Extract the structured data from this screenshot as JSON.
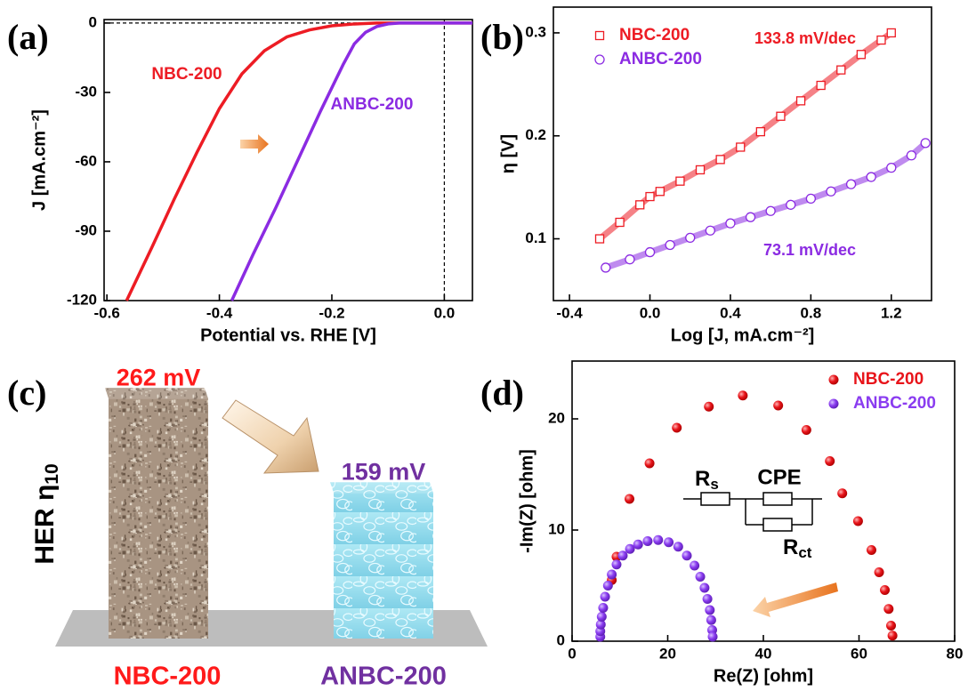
{
  "chart_data": [
    {
      "type": "line",
      "panel_label": "(a)",
      "x_label": "Potential vs. RHE [V]",
      "y_label": "J [mA.cm⁻²]",
      "xlim": [
        -0.605,
        0.05
      ],
      "ylim": [
        -120,
        1.5
      ],
      "xticks": [
        -0.6,
        -0.4,
        -0.2,
        {
          "value": 0,
          "label": "0.0"
        }
      ],
      "yticks": [
        -120,
        -90,
        -60,
        -30,
        0
      ],
      "reference_lines": {
        "x": 0,
        "y": 0
      },
      "series": [
        {
          "name": "NBC-200",
          "color": "#ed1c24",
          "x": [
            -0.565,
            -0.52,
            -0.48,
            -0.44,
            -0.4,
            -0.36,
            -0.32,
            -0.28,
            -0.24,
            -0.2,
            -0.16,
            -0.12,
            0.05
          ],
          "values": [
            -120,
            -97,
            -76,
            -56,
            -37,
            -22,
            -12,
            -6,
            -3,
            -1.2,
            -0.4,
            0,
            0
          ]
        },
        {
          "name": "ANBC-200",
          "color": "#8b2be2",
          "x": [
            -0.378,
            -0.34,
            -0.3,
            -0.26,
            -0.22,
            -0.18,
            -0.16,
            -0.14,
            -0.12,
            -0.1,
            -0.08,
            0.05
          ],
          "values": [
            -120,
            -100,
            -80,
            -59,
            -38,
            -18,
            -9,
            -4,
            -1.5,
            -0.4,
            0,
            0
          ]
        }
      ]
    },
    {
      "type": "scatter",
      "panel_label": "(b)",
      "x_label": "Log [J, mA.cm⁻²]",
      "y_label": "η [V]",
      "xlim": [
        -0.48,
        1.4
      ],
      "ylim": [
        0.04,
        0.325
      ],
      "xticks": [
        -0.4,
        {
          "value": 0,
          "label": "0.0"
        },
        0.4,
        0.8,
        1.2
      ],
      "yticks": [
        0.1,
        0.2,
        0.3
      ],
      "legend": "upper left",
      "series": [
        {
          "name": "NBC-200",
          "color": "#ed1c24",
          "marker": "square",
          "slope_label": "133.8 mV/dec",
          "x": [
            -0.25,
            -0.15,
            -0.05,
            0.0,
            0.05,
            0.15,
            0.25,
            0.35,
            0.45,
            0.55,
            0.65,
            0.75,
            0.85,
            0.95,
            1.05,
            1.15,
            1.2
          ],
          "values": [
            0.1,
            0.116,
            0.133,
            0.141,
            0.146,
            0.156,
            0.167,
            0.177,
            0.189,
            0.204,
            0.219,
            0.234,
            0.249,
            0.264,
            0.279,
            0.293,
            0.3
          ]
        },
        {
          "name": "ANBC-200",
          "color": "#8b2be2",
          "marker": "circle",
          "slope_label": "73.1 mV/dec",
          "x": [
            -0.22,
            -0.1,
            0.0,
            0.1,
            0.2,
            0.3,
            0.4,
            0.5,
            0.6,
            0.7,
            0.8,
            0.9,
            1.0,
            1.1,
            1.2,
            1.3,
            1.37
          ],
          "values": [
            0.072,
            0.08,
            0.087,
            0.094,
            0.101,
            0.108,
            0.115,
            0.121,
            0.127,
            0.133,
            0.139,
            0.146,
            0.153,
            0.16,
            0.169,
            0.181,
            0.193
          ]
        }
      ]
    },
    {
      "type": "bar",
      "panel_label": "(c)",
      "y_label": "HER η",
      "y_label_sub": "10",
      "categories": [
        "NBC-200",
        "ANBC-200"
      ],
      "values": [
        262,
        159
      ],
      "value_labels": [
        "262 mV",
        "159 mV"
      ],
      "colors": [
        "#ff1a1a",
        "#7030a0"
      ]
    },
    {
      "type": "scatter",
      "panel_label": "(d)",
      "x_label": "Re(Z) [ohm]",
      "y_label": "-Im(Z) [ohm]",
      "xlim": [
        0,
        80
      ],
      "ylim": [
        0,
        25.2
      ],
      "xticks": [
        0,
        20,
        40,
        60,
        80
      ],
      "yticks": [
        0,
        10,
        20
      ],
      "legend": "upper right",
      "inset": {
        "rs": "R",
        "rs_sub": "s",
        "cpe": "CPE",
        "rct": "R",
        "rct_sub": "ct"
      },
      "series": [
        {
          "name": "NBC-200",
          "color": "#e8141a",
          "marker": "dot",
          "x": [
            8.3,
            9.3,
            12.0,
            16.2,
            21.9,
            28.6,
            35.7,
            43.1,
            49.0,
            53.9,
            56.5,
            59.8,
            62.6,
            64.2,
            65.4,
            66.2,
            66.7,
            67.0
          ],
          "values": [
            5.5,
            7.6,
            12.8,
            16.0,
            19.2,
            21.1,
            22.1,
            21.2,
            19.0,
            16.2,
            13.3,
            10.8,
            8.2,
            6.2,
            4.6,
            2.9,
            1.4,
            0.5
          ]
        },
        {
          "name": "ANBC-200",
          "color": "#8a3cf0",
          "marker": "dot",
          "x": [
            5.9,
            5.9,
            6.0,
            6.2,
            6.5,
            6.9,
            7.5,
            8.3,
            9.3,
            10.6,
            12.1,
            13.8,
            15.8,
            18.0,
            20.2,
            22.2,
            24.0,
            25.6,
            26.8,
            27.7,
            28.3,
            28.8,
            29.1,
            29.3,
            29.4
          ],
          "values": [
            0.4,
            0.9,
            1.5,
            2.2,
            3.0,
            4.0,
            5.0,
            6.0,
            6.9,
            7.7,
            8.3,
            8.7,
            9.0,
            9.1,
            8.9,
            8.5,
            7.7,
            6.8,
            5.8,
            4.8,
            3.8,
            2.8,
            1.9,
            1.0,
            0.4
          ]
        }
      ]
    }
  ]
}
